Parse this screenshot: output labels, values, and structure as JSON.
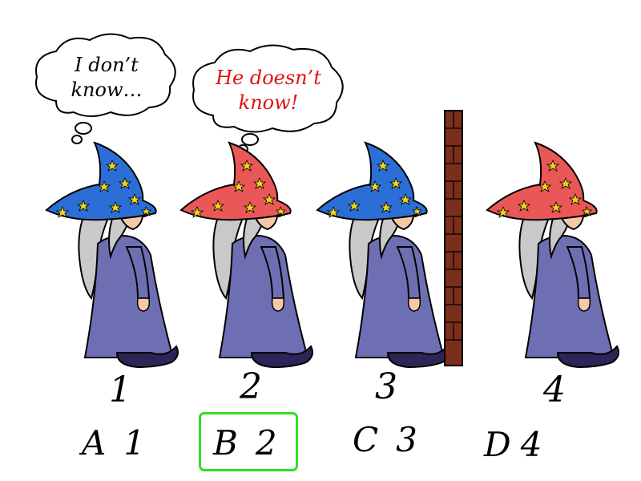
{
  "bubbles": [
    {
      "line1": "I don’t",
      "line2": "know…",
      "color": "#000000"
    },
    {
      "line1": "He doesn’t",
      "line2": "know!",
      "color": "#e01010"
    }
  ],
  "wizards": [
    {
      "number": "1",
      "hat_color": "blue"
    },
    {
      "number": "2",
      "hat_color": "red"
    },
    {
      "number": "3",
      "hat_color": "blue"
    },
    {
      "number": "4",
      "hat_color": "red"
    }
  ],
  "colors": {
    "blue_hat": "#2b6fd6",
    "red_hat": "#ea5757",
    "star": "#f3d31c",
    "robe": "#6e6fb3",
    "beard": "#c9c9c9",
    "skin": "#f4c9a8",
    "boot": "#2d2557",
    "wall": "#7a2e1c",
    "highlight": "#33dd22"
  },
  "options": [
    {
      "letter": "A",
      "value": "1",
      "selected": false
    },
    {
      "letter": "B",
      "value": "2",
      "selected": true
    },
    {
      "letter": "C",
      "value": "3",
      "selected": false
    },
    {
      "letter": "D",
      "value": "4",
      "selected": false
    }
  ]
}
